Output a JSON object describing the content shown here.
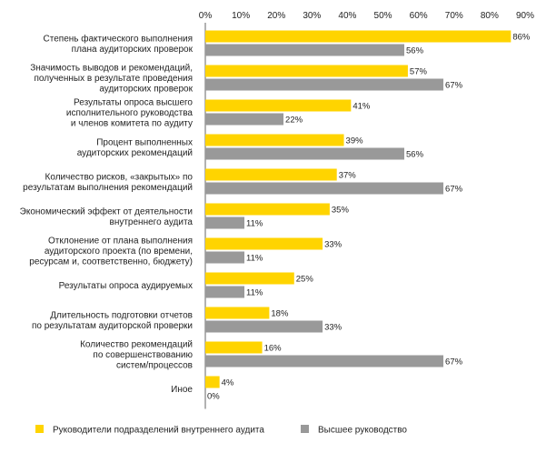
{
  "chart_data": {
    "type": "bar",
    "orientation": "horizontal",
    "categories": [
      [
        "Степень фактического выполнения",
        "плана аудиторских проверок"
      ],
      [
        "Значимость выводов и рекомендаций,",
        "полученных в результате проведения",
        "аудиторских проверок"
      ],
      [
        "Результаты опроса высшего",
        "исполнительного руководства",
        "и членов комитета по аудиту"
      ],
      [
        "Процент выполненных",
        "аудиторских рекомендаций"
      ],
      [
        "Количество рисков, «закрытых» по",
        "результатам выполнения рекомендаций"
      ],
      [
        "Экономический эффект от деятельности",
        "внутреннего аудита"
      ],
      [
        "Отклонение от плана выполнения",
        "аудиторского проекта (по времени,",
        "ресурсам и, соответственно, бюджету)"
      ],
      [
        "Результаты опроса аудируемых"
      ],
      [
        "Длительность подготовки отчетов",
        "по результатам аудиторской проверки"
      ],
      [
        "Количество рекомендаций",
        "по совершенствованию",
        "систем/процессов"
      ],
      [
        "Иное"
      ]
    ],
    "series": [
      {
        "name": "Руководители подразделений внутреннего аудита",
        "color": "#ffd400",
        "values": [
          86,
          57,
          41,
          39,
          37,
          35,
          33,
          25,
          18,
          16,
          4
        ],
        "value_labels": [
          "86%",
          "57%",
          "41%",
          "39%",
          "37%",
          "35%",
          "33%",
          "25%",
          "18%",
          "16%",
          "4%"
        ]
      },
      {
        "name": "Высшее руководство",
        "color": "#999999",
        "values": [
          56,
          67,
          22,
          56,
          67,
          11,
          11,
          11,
          33,
          67,
          0
        ],
        "value_labels": [
          "56%",
          "67%",
          "22%",
          "56%",
          "67%",
          "11%",
          "11%",
          "11%",
          "33%",
          "67%",
          "0%"
        ]
      }
    ],
    "x_ticks": [
      "0%",
      "10%",
      "20%",
      "30%",
      "40%",
      "50%",
      "60%",
      "70%",
      "80%",
      "90%"
    ],
    "xlim": [
      0,
      90
    ],
    "axis_position": "top",
    "grid": false,
    "legend_placement": "bottom",
    "title": "",
    "xlabel": "",
    "ylabel": ""
  }
}
